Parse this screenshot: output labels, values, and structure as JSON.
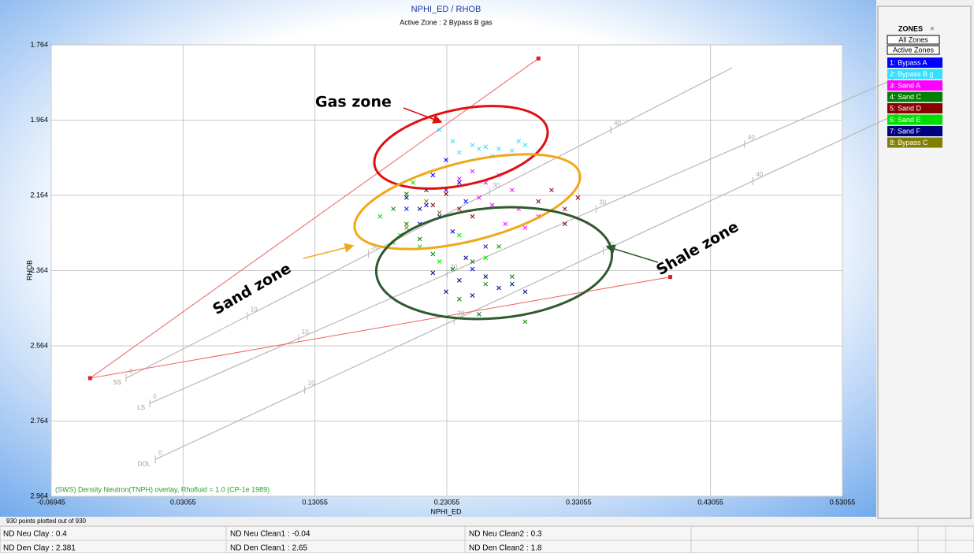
{
  "chart_data": {
    "type": "scatter",
    "title": "NPHI_ED / RHOB",
    "subtitle": "Active Zone : 2  Bypass B gas",
    "x_label": "NPHI_ED",
    "y_label": "RHOB",
    "xlim": [
      -0.06945,
      0.53055
    ],
    "ylim": [
      1.764,
      2.964
    ],
    "y_inverted": true,
    "xticks": [
      -0.06945,
      0.03055,
      0.13055,
      0.23055,
      0.33055,
      0.43055,
      0.53055
    ],
    "yticks": [
      1.764,
      1.964,
      2.164,
      2.364,
      2.564,
      2.764,
      2.964
    ],
    "grid": true,
    "overlay_note": "(SWS) Density Neutron(TNPH) overlay, Rhofluid = 1.0 (CP-1e 1989)",
    "footnote": "930 points plotted out of 930",
    "lithology_lines": [
      {
        "label": "SS",
        "start": [
          -0.0127,
          2.65
        ],
        "end": [
          0.3549,
          1.99
        ],
        "ticks": [
          0,
          10,
          20,
          30,
          40
        ]
      },
      {
        "label": "LS",
        "start": [
          0.0053,
          2.717
        ],
        "end": [
          0.4564,
          2.028
        ],
        "ticks": [
          0,
          10,
          20,
          30,
          40
        ]
      },
      {
        "label": "DOL",
        "start": [
          0.0095,
          2.866
        ],
        "end": [
          0.4626,
          2.126
        ],
        "ticks": [
          0,
          10,
          20,
          30,
          40
        ]
      }
    ],
    "series": [
      {
        "name": "1: Bypass A",
        "color": "#0000ff",
        "x": [
          0.22,
          0.23,
          0.215,
          0.24,
          0.225,
          0.21,
          0.235,
          0.245,
          0.2,
          0.23,
          0.26,
          0.25
        ],
        "values": [
          2.11,
          2.15,
          2.19,
          2.13,
          2.22,
          2.24,
          2.26,
          2.18,
          2.2,
          2.07,
          2.3,
          2.36
        ]
      },
      {
        "name": "2: Bypass B g",
        "color": "#33e0ff",
        "x": [
          0.225,
          0.235,
          0.25,
          0.255,
          0.26,
          0.27,
          0.28,
          0.29,
          0.24,
          0.265,
          0.285
        ],
        "values": [
          1.99,
          2.02,
          2.03,
          2.04,
          2.035,
          2.04,
          2.045,
          2.03,
          2.05,
          2.06,
          2.02
        ]
      },
      {
        "name": "3: Sand A",
        "color": "#ff00ff",
        "x": [
          0.24,
          0.25,
          0.26,
          0.27,
          0.28,
          0.265,
          0.285,
          0.29,
          0.275,
          0.255,
          0.3
        ],
        "values": [
          2.12,
          2.1,
          2.13,
          2.11,
          2.15,
          2.19,
          2.2,
          2.25,
          2.24,
          2.17,
          2.22
        ]
      },
      {
        "name": "4: Sand C",
        "color": "#008000",
        "x": [
          0.19,
          0.2,
          0.21,
          0.22,
          0.235,
          0.25,
          0.26,
          0.27,
          0.28,
          0.24,
          0.255,
          0.29,
          0.2
        ],
        "values": [
          2.2,
          2.24,
          2.28,
          2.32,
          2.36,
          2.34,
          2.4,
          2.3,
          2.38,
          2.44,
          2.48,
          2.5,
          2.16
        ]
      },
      {
        "name": "5: Sand D",
        "color": "#8b0000",
        "x": [
          0.23,
          0.24,
          0.25,
          0.3,
          0.31,
          0.32,
          0.33,
          0.32,
          0.22
        ],
        "values": [
          2.16,
          2.2,
          2.22,
          2.18,
          2.15,
          2.2,
          2.17,
          2.24,
          2.19
        ]
      },
      {
        "name": "6: Sand E",
        "color": "#00e000",
        "x": [
          0.18,
          0.195,
          0.21,
          0.225,
          0.205,
          0.24,
          0.26,
          0.19
        ],
        "values": [
          2.22,
          2.27,
          2.3,
          2.34,
          2.13,
          2.27,
          2.33,
          2.29
        ]
      },
      {
        "name": "7: Sand F",
        "color": "#000080",
        "x": [
          0.2,
          0.21,
          0.215,
          0.23,
          0.24,
          0.25,
          0.26,
          0.27,
          0.28,
          0.29,
          0.245,
          0.22
        ],
        "values": [
          2.17,
          2.2,
          2.15,
          2.42,
          2.39,
          2.43,
          2.38,
          2.41,
          2.4,
          2.42,
          2.33,
          2.37
        ]
      },
      {
        "name": "8: Bypass C",
        "color": "#808000",
        "x": [
          0.215,
          0.225,
          0.2
        ],
        "values": [
          2.18,
          2.21,
          2.25
        ]
      }
    ]
  },
  "legend_panel": {
    "title": "ZONES",
    "close": "×",
    "buttons": [
      "All Zones",
      "Active Zones"
    ]
  },
  "annotations": {
    "gas": "Gas zone",
    "sand": "Sand zone",
    "shale": "Shale zone"
  },
  "params": [
    {
      "label": "ND Neu Clay :",
      "value": 0.4
    },
    {
      "label": "ND Neu Clean1 :",
      "value": -0.04
    },
    {
      "label": "ND Neu Clean2 :",
      "value": 0.3
    },
    {
      "label": "ND Den Clay :",
      "value": 2.381
    },
    {
      "label": "ND Den Clean1 :",
      "value": 2.65
    },
    {
      "label": "ND Den Clean2 :",
      "value": 1.8
    }
  ]
}
